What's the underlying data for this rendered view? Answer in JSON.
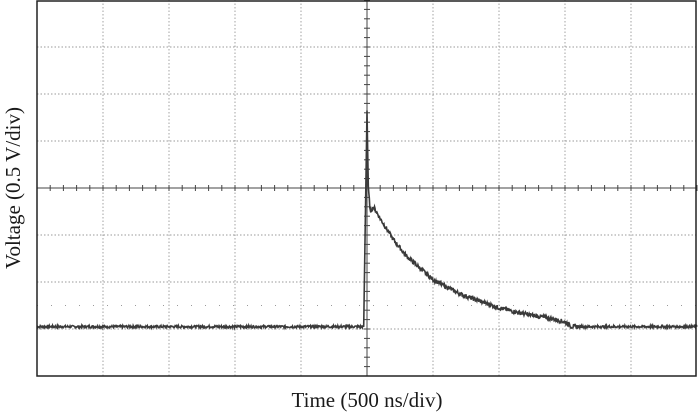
{
  "chart_data": {
    "type": "line",
    "title": "",
    "xlabel": "Time (500 ns/div)",
    "ylabel": "Voltage (0.5 V/div)",
    "x_divisions": 10,
    "y_divisions": 8,
    "x_range_div": [
      0,
      10
    ],
    "y_range_div": [
      -4,
      4
    ],
    "grid": true,
    "trace_color": "#3a3a3a",
    "grid_color": "#9a9a9a",
    "series": [
      {
        "x": [
          0,
          1,
          2,
          3,
          4,
          4.95,
          5.0,
          5.02,
          5.05,
          5.1,
          5.2,
          5.4,
          5.6,
          5.8,
          6.0,
          6.2,
          6.4,
          6.6,
          6.8,
          7.0,
          7.2,
          7.4,
          7.6,
          7.8,
          8.0,
          8.1,
          8.2,
          9,
          10
        ],
        "y": [
          -2.95,
          -2.95,
          -2.95,
          -2.95,
          -2.95,
          -2.95,
          1.65,
          0.0,
          -0.5,
          -0.4,
          -0.65,
          -1.1,
          -1.45,
          -1.7,
          -1.95,
          -2.1,
          -2.25,
          -2.35,
          -2.45,
          -2.55,
          -2.62,
          -2.68,
          -2.73,
          -2.78,
          -2.85,
          -2.95,
          -2.95,
          -2.95,
          -2.95
        ]
      }
    ]
  }
}
